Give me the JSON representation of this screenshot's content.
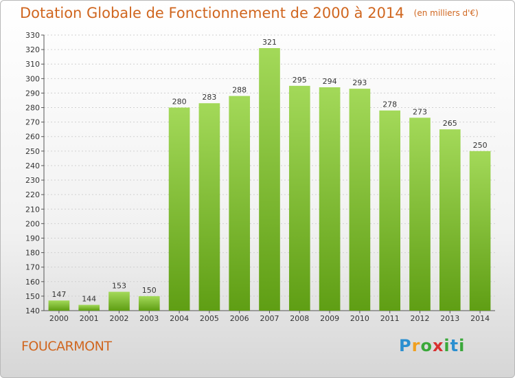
{
  "header": {
    "title": "Dotation Globale de Fonctionnement de 2000 à 2014",
    "unit": "(en milliers d'€)"
  },
  "footer": {
    "commune": "FOUCARMONT",
    "logo": [
      "P",
      "r",
      "o",
      "x",
      "i",
      "t",
      "i"
    ]
  },
  "colors": {
    "bar_top": "#a3d959",
    "bar_bottom": "#5f9e14",
    "title": "#d0661f",
    "grid": "#d0d0d0"
  },
  "chart_data": {
    "type": "bar",
    "title": "Dotation Globale de Fonctionnement de 2000 à 2014",
    "ylabel": "(en milliers d'€)",
    "categories": [
      "2000",
      "2001",
      "2002",
      "2003",
      "2004",
      "2005",
      "2006",
      "2007",
      "2008",
      "2009",
      "2010",
      "2011",
      "2012",
      "2013",
      "2014"
    ],
    "values": [
      147,
      144,
      153,
      150,
      280,
      283,
      288,
      321,
      295,
      294,
      293,
      278,
      273,
      265,
      250
    ],
    "ylim": [
      140,
      330
    ],
    "ytick_step": 10,
    "grid": true,
    "legend": "none"
  }
}
